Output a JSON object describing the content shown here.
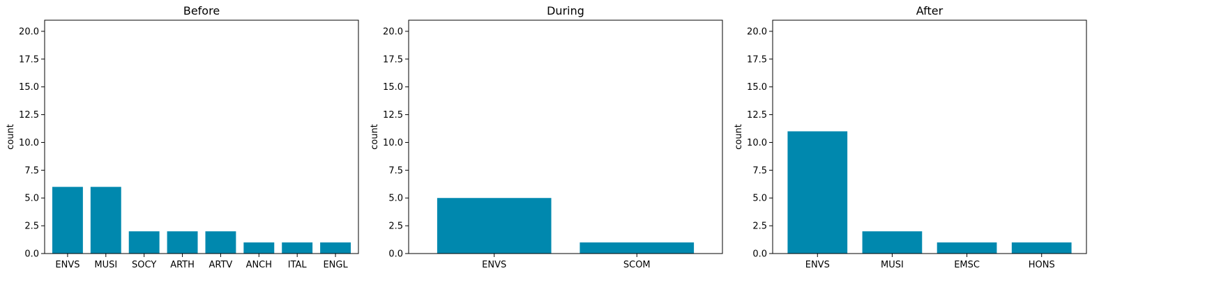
{
  "figure": {
    "background": "#ffffff",
    "bar_color": "#0088ae"
  },
  "chart_data": [
    {
      "type": "bar",
      "title": "Before",
      "xlabel": "",
      "ylabel": "count",
      "ylim": [
        0,
        21
      ],
      "yticks": [
        "0.0",
        "2.5",
        "5.0",
        "7.5",
        "10.0",
        "12.5",
        "15.0",
        "17.5",
        "20.0"
      ],
      "categories": [
        "ENVS",
        "MUSI",
        "SOCY",
        "ARTH",
        "ARTV",
        "ANCH",
        "ITAL",
        "ENGL"
      ],
      "values": [
        6,
        6,
        2,
        2,
        2,
        1,
        1,
        1
      ],
      "grid": false
    },
    {
      "type": "bar",
      "title": "During",
      "xlabel": "",
      "ylabel": "count",
      "ylim": [
        0,
        21
      ],
      "yticks": [
        "0.0",
        "2.5",
        "5.0",
        "7.5",
        "10.0",
        "12.5",
        "15.0",
        "17.5",
        "20.0"
      ],
      "categories": [
        "ENVS",
        "SCOM"
      ],
      "values": [
        5,
        1
      ],
      "grid": false
    },
    {
      "type": "bar",
      "title": "After",
      "xlabel": "",
      "ylabel": "count",
      "ylim": [
        0,
        21
      ],
      "yticks": [
        "0.0",
        "2.5",
        "5.0",
        "7.5",
        "10.0",
        "12.5",
        "15.0",
        "17.5",
        "20.0"
      ],
      "categories": [
        "ENVS",
        "MUSI",
        "EMSC",
        "HONS"
      ],
      "values": [
        11,
        2,
        1,
        1
      ],
      "grid": false
    }
  ]
}
